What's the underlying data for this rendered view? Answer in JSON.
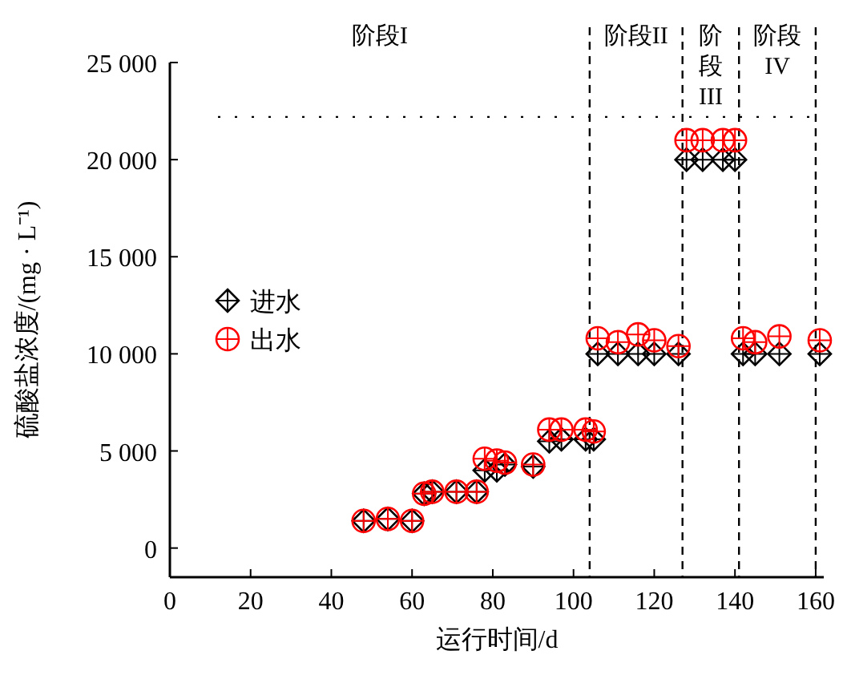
{
  "chart_data": {
    "type": "scatter",
    "xlabel": "运行时间/d",
    "ylabel": "硫酸盐浓度/(mg · L⁻¹)",
    "xlim": [
      0,
      162
    ],
    "xticks": [
      0,
      20,
      40,
      60,
      80,
      100,
      120,
      140,
      160
    ],
    "ylim": [
      -1500,
      25000
    ],
    "yticks": [
      0,
      {
        "value": 5000,
        "label": "5 000"
      },
      {
        "value": 10000,
        "label": "10 000"
      },
      {
        "value": 15000,
        "label": "15 000"
      },
      {
        "value": 20000,
        "label": "20 000"
      },
      {
        "value": 25000,
        "label": "25 000"
      }
    ],
    "grid": false,
    "legend": "left",
    "tick_labels": true,
    "series": [
      {
        "name": "进水",
        "color": "#000000",
        "marker": "diamond",
        "x": [
          48,
          54,
          60,
          63,
          65,
          71,
          76,
          78,
          81,
          83,
          90,
          94,
          97,
          103,
          105,
          106,
          111,
          116,
          120,
          126,
          128,
          132,
          137,
          140,
          142,
          145,
          151,
          161
        ],
        "values": [
          1400,
          1500,
          1400,
          2800,
          2900,
          2900,
          2900,
          4000,
          4000,
          4300,
          4200,
          5500,
          5600,
          5600,
          5600,
          10000,
          10000,
          10000,
          10000,
          10000,
          20000,
          20000,
          20000,
          20000,
          10000,
          10000,
          10000,
          10000
        ]
      },
      {
        "name": "出水",
        "color": "#ff0000",
        "marker": "circle",
        "x": [
          48,
          54,
          60,
          63,
          65,
          71,
          76,
          78,
          81,
          83,
          90,
          94,
          97,
          103,
          105,
          106,
          111,
          116,
          120,
          126,
          128,
          132,
          137,
          140,
          142,
          145,
          151,
          161
        ],
        "values": [
          1400,
          1500,
          1400,
          2800,
          2900,
          2900,
          2900,
          4600,
          4500,
          4400,
          4300,
          6100,
          6100,
          6100,
          6000,
          10800,
          10600,
          11000,
          10700,
          10400,
          21000,
          21000,
          21000,
          21000,
          10800,
          10600,
          10900,
          10700
        ]
      }
    ],
    "annotations": [
      "阶段I"
    ],
    "ref_lines": [
      {
        "axis": "y",
        "value": 22200,
        "line_style": "dotted"
      },
      {
        "axis": "x",
        "value": 104,
        "line_style": "dashed"
      },
      {
        "axis": "x",
        "value": 127,
        "line_style": "dashed",
        "label": "阶段II"
      },
      {
        "axis": "x",
        "value": 141,
        "line_style": "dashed",
        "label": "阶段III"
      },
      {
        "axis": "x",
        "value": 160,
        "line_style": "dashed",
        "label": "阶段IV"
      }
    ]
  }
}
